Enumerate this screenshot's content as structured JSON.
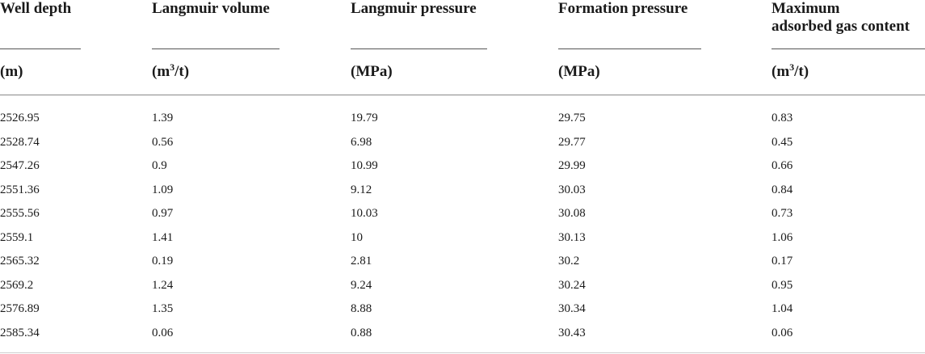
{
  "columns": [
    {
      "title": "Well depth",
      "unit_base": "(m)",
      "unit_sup": "",
      "unit_tail": ""
    },
    {
      "title": "Langmuir volume",
      "unit_base": "(m",
      "unit_sup": "3",
      "unit_tail": "/t)"
    },
    {
      "title": "Langmuir pressure",
      "unit_base": "(MPa)",
      "unit_sup": "",
      "unit_tail": ""
    },
    {
      "title": "Formation pressure",
      "unit_base": "(MPa)",
      "unit_sup": "",
      "unit_tail": ""
    },
    {
      "title_line1": "Maximum",
      "title_line2": "adsorbed gas content",
      "unit_base": "(m",
      "unit_sup": "3",
      "unit_tail": "/t)"
    }
  ],
  "rows": [
    [
      "2526.95",
      "1.39",
      "19.79",
      "29.75",
      "0.83"
    ],
    [
      "2528.74",
      "0.56",
      "6.98",
      "29.77",
      "0.45"
    ],
    [
      "2547.26",
      "0.9",
      "10.99",
      "29.99",
      "0.66"
    ],
    [
      "2551.36",
      "1.09",
      "9.12",
      "30.03",
      "0.84"
    ],
    [
      "2555.56",
      "0.97",
      "10.03",
      "30.08",
      "0.73"
    ],
    [
      "2559.1",
      "1.41",
      "10",
      "30.13",
      "1.06"
    ],
    [
      "2565.32",
      "0.19",
      "2.81",
      "30.2",
      "0.17"
    ],
    [
      "2569.2",
      "1.24",
      "9.24",
      "30.24",
      "0.95"
    ],
    [
      "2576.89",
      "1.35",
      "8.88",
      "30.34",
      "1.04"
    ],
    [
      "2585.34",
      "0.06",
      "0.88",
      "30.43",
      "0.06"
    ]
  ]
}
